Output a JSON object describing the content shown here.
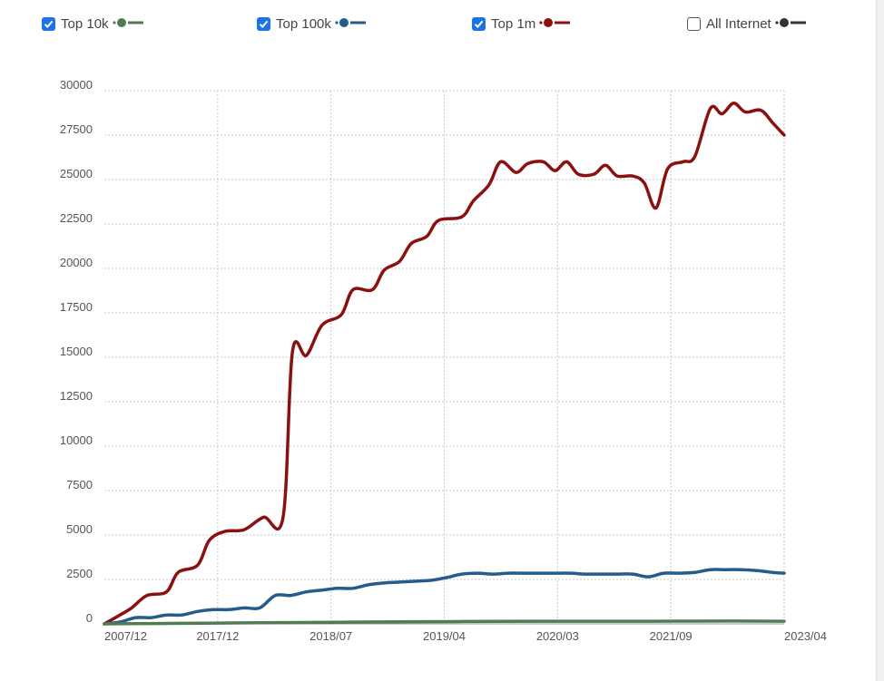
{
  "legend": [
    {
      "label": "Top 10k",
      "checked": true,
      "color": "#537b52"
    },
    {
      "label": "Top 100k",
      "checked": true,
      "color": "#265c8c"
    },
    {
      "label": "Top 1m",
      "checked": true,
      "color": "#8b1111"
    },
    {
      "label": "All Internet",
      "checked": false,
      "color": "#333333"
    }
  ],
  "chart_data": {
    "type": "line",
    "title": "",
    "xlabel": "",
    "ylabel": "",
    "ylim": [
      0,
      30000
    ],
    "yticks": [
      "0",
      "2500",
      "5000",
      "7500",
      "10000",
      "12500",
      "15000",
      "17500",
      "20000",
      "22500",
      "25000",
      "27500",
      "30000"
    ],
    "xticks": [
      "2007/12",
      "2017/12",
      "2018/07",
      "2019/04",
      "2020/03",
      "2021/09",
      "2023/04"
    ],
    "grid": true,
    "legend_position": "top",
    "series": [
      {
        "name": "Top 1m",
        "color": "#8b1111",
        "points": [
          [
            0,
            0
          ],
          [
            0.1,
            250
          ],
          [
            0.2,
            500
          ],
          [
            0.35,
            900
          ],
          [
            0.55,
            1600
          ],
          [
            0.8,
            1800
          ],
          [
            0.95,
            2900
          ],
          [
            1.2,
            3300
          ],
          [
            1.35,
            4700
          ],
          [
            1.55,
            5200
          ],
          [
            1.8,
            5300
          ],
          [
            2.05,
            6000
          ],
          [
            2.3,
            6000
          ],
          [
            2.42,
            15300
          ],
          [
            2.6,
            15100
          ],
          [
            2.8,
            16800
          ],
          [
            3.05,
            17400
          ],
          [
            3.2,
            18800
          ],
          [
            3.45,
            18800
          ],
          [
            3.6,
            19900
          ],
          [
            3.8,
            20400
          ],
          [
            3.95,
            21400
          ],
          [
            4.15,
            21800
          ],
          [
            4.3,
            22700
          ],
          [
            4.6,
            22900
          ],
          [
            4.75,
            23800
          ],
          [
            4.95,
            24700
          ],
          [
            5.1,
            26000
          ],
          [
            5.3,
            25400
          ],
          [
            5.45,
            25900
          ],
          [
            5.65,
            26000
          ],
          [
            5.8,
            25500
          ],
          [
            5.95,
            26000
          ],
          [
            6.1,
            25300
          ],
          [
            6.3,
            25300
          ],
          [
            6.45,
            25800
          ],
          [
            6.6,
            25200
          ],
          [
            6.8,
            25200
          ],
          [
            6.95,
            24800
          ],
          [
            7.1,
            23400
          ],
          [
            7.25,
            25600
          ],
          [
            7.45,
            26000
          ],
          [
            7.6,
            26300
          ],
          [
            7.8,
            29000
          ],
          [
            7.95,
            28700
          ],
          [
            8.1,
            29300
          ],
          [
            8.25,
            28800
          ],
          [
            8.45,
            28900
          ],
          [
            8.6,
            28200
          ],
          [
            8.75,
            27500
          ]
        ]
      },
      {
        "name": "Top 100k",
        "color": "#265c8c",
        "points": [
          [
            0,
            0
          ],
          [
            0.2,
            100
          ],
          [
            0.4,
            350
          ],
          [
            0.6,
            350
          ],
          [
            0.8,
            500
          ],
          [
            1.0,
            500
          ],
          [
            1.2,
            700
          ],
          [
            1.4,
            800
          ],
          [
            1.6,
            800
          ],
          [
            1.8,
            900
          ],
          [
            2.0,
            900
          ],
          [
            2.2,
            1600
          ],
          [
            2.4,
            1600
          ],
          [
            2.6,
            1800
          ],
          [
            2.8,
            1900
          ],
          [
            3.0,
            2000
          ],
          [
            3.2,
            2000
          ],
          [
            3.4,
            2200
          ],
          [
            3.6,
            2300
          ],
          [
            3.8,
            2350
          ],
          [
            4.0,
            2400
          ],
          [
            4.2,
            2450
          ],
          [
            4.4,
            2600
          ],
          [
            4.6,
            2800
          ],
          [
            4.8,
            2850
          ],
          [
            5.0,
            2800
          ],
          [
            5.2,
            2850
          ],
          [
            5.4,
            2850
          ],
          [
            5.6,
            2850
          ],
          [
            5.8,
            2850
          ],
          [
            6.0,
            2850
          ],
          [
            6.2,
            2800
          ],
          [
            6.4,
            2800
          ],
          [
            6.6,
            2800
          ],
          [
            6.8,
            2800
          ],
          [
            7.0,
            2650
          ],
          [
            7.2,
            2850
          ],
          [
            7.4,
            2850
          ],
          [
            7.6,
            2900
          ],
          [
            7.8,
            3050
          ],
          [
            8.0,
            3050
          ],
          [
            8.2,
            3050
          ],
          [
            8.4,
            3000
          ],
          [
            8.6,
            2900
          ],
          [
            8.75,
            2850
          ]
        ]
      },
      {
        "name": "Top 10k",
        "color": "#537b52",
        "points": [
          [
            0,
            0
          ],
          [
            1,
            30
          ],
          [
            2,
            60
          ],
          [
            3,
            90
          ],
          [
            4,
            120
          ],
          [
            5,
            140
          ],
          [
            6,
            150
          ],
          [
            7,
            150
          ],
          [
            8,
            160
          ],
          [
            8.75,
            150
          ]
        ]
      }
    ]
  }
}
